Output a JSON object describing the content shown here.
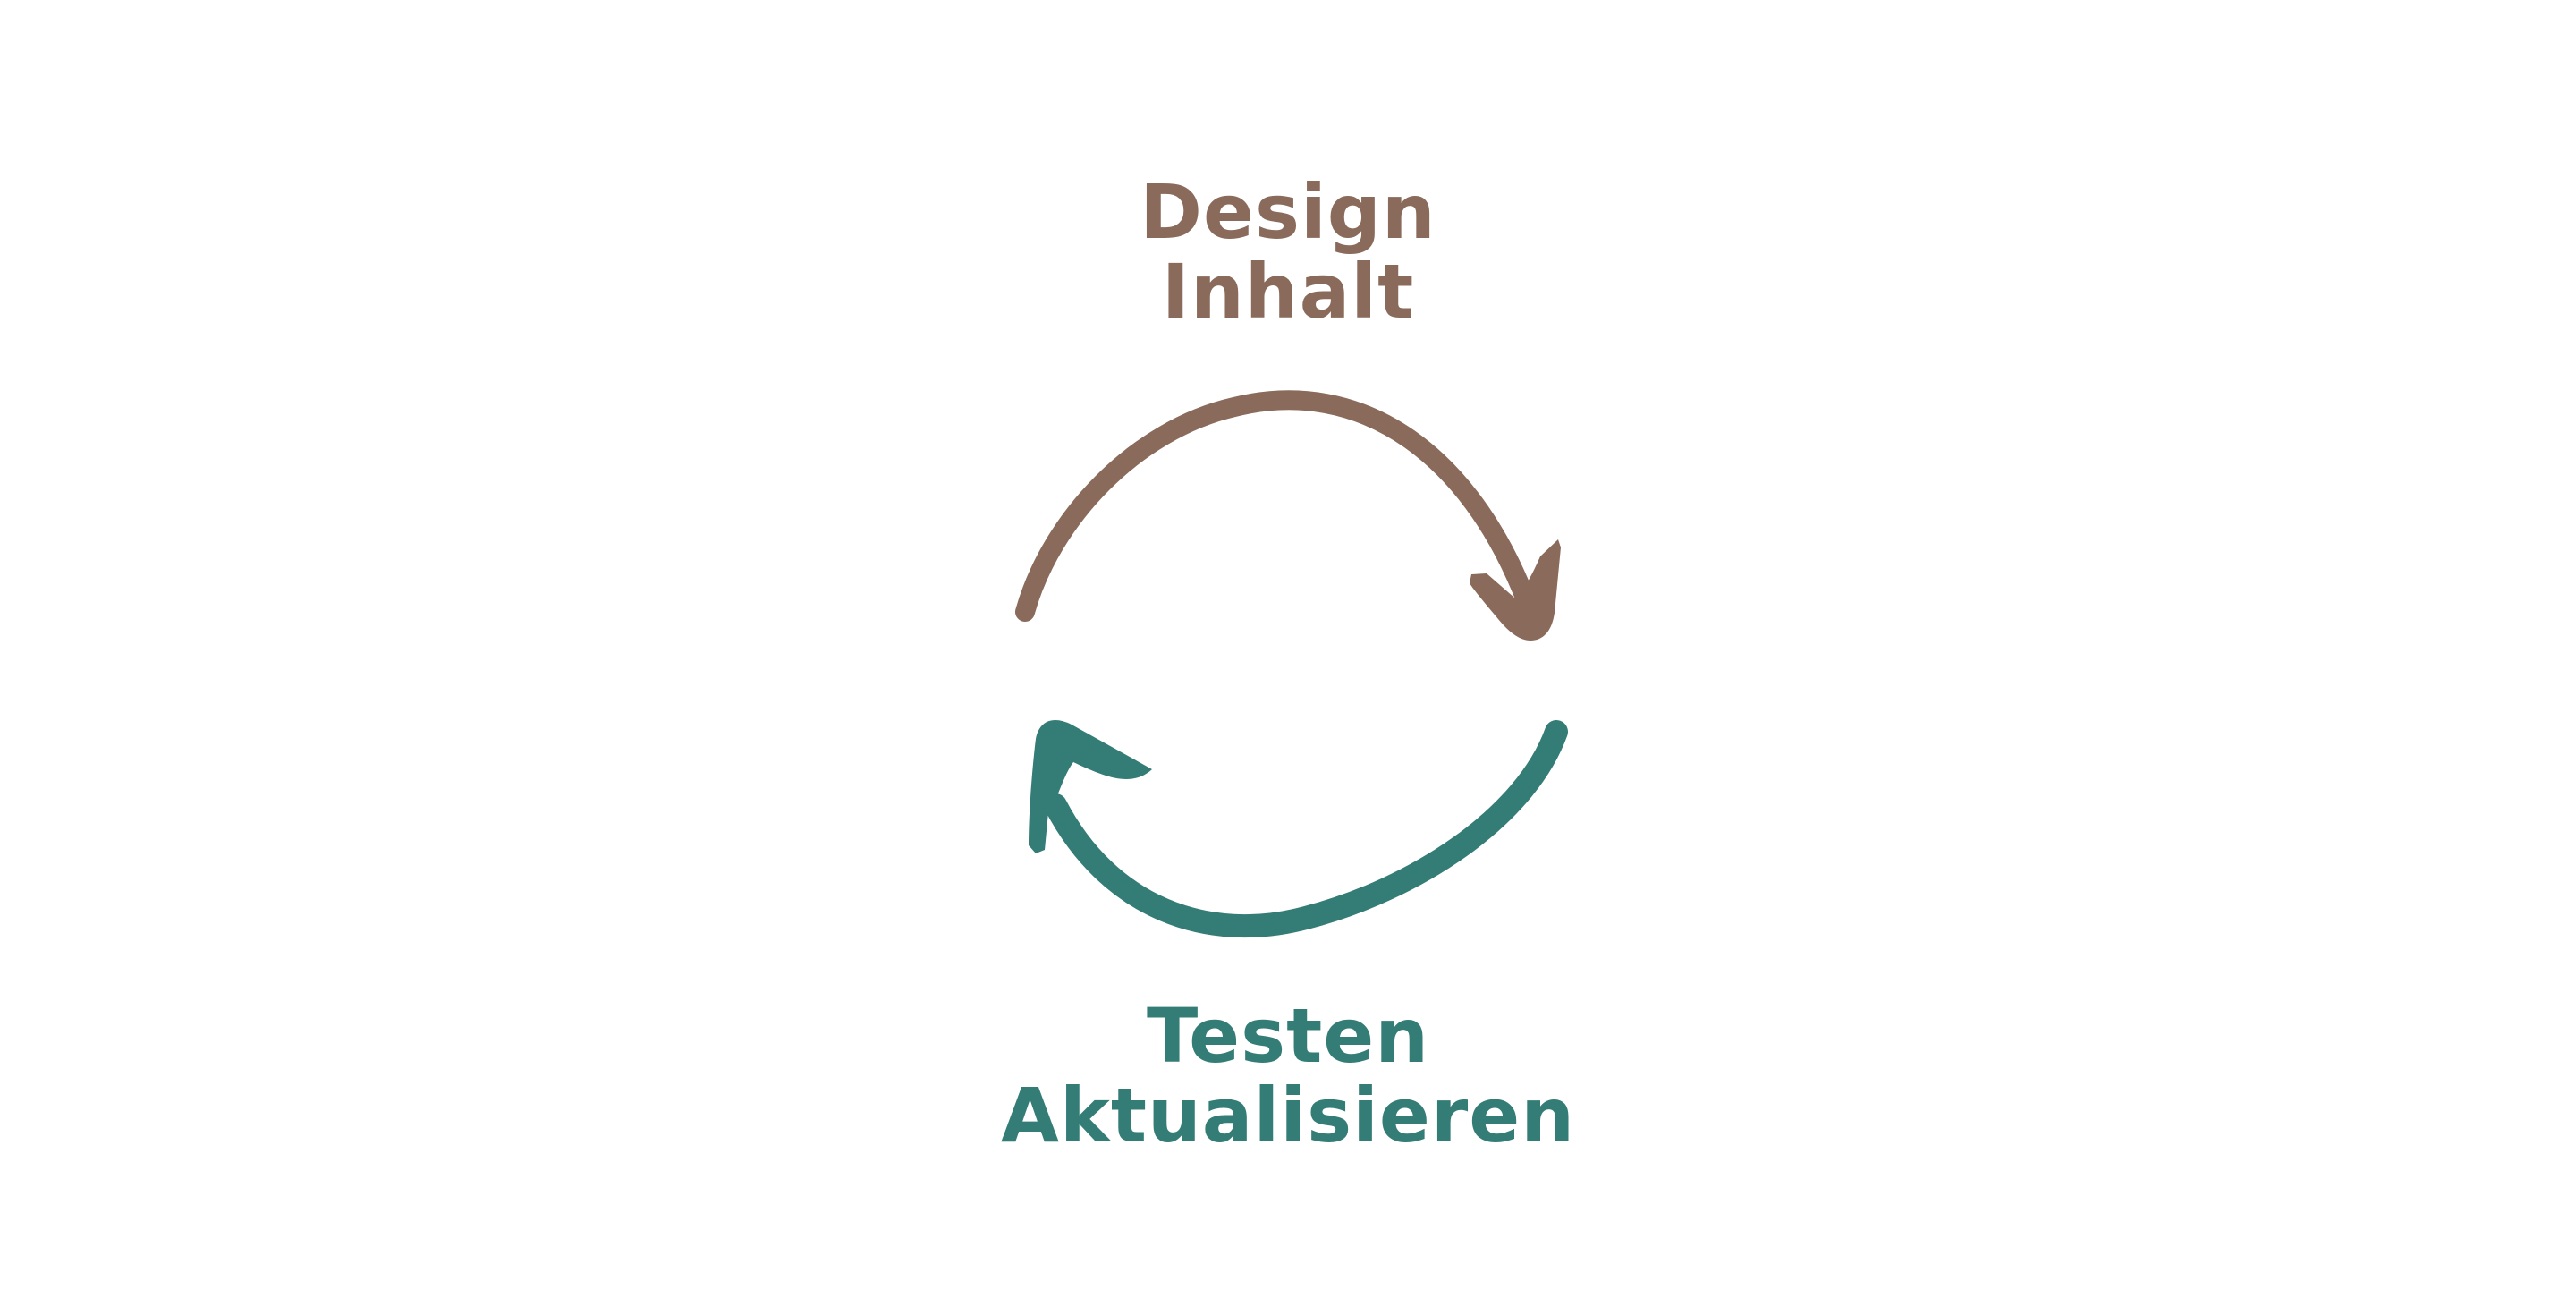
{
  "top_group": {
    "line1": "Design",
    "line2": "Inhalt",
    "color": "#8a6a5a"
  },
  "bottom_group": {
    "line1": "Testen",
    "line2": "Aktualisieren",
    "color": "#337d76"
  },
  "arrows": [
    {
      "name": "top-arrow",
      "color": "#8a6a5a",
      "direction": "clockwise"
    },
    {
      "name": "bottom-arrow",
      "color": "#337d76",
      "direction": "clockwise"
    }
  ]
}
